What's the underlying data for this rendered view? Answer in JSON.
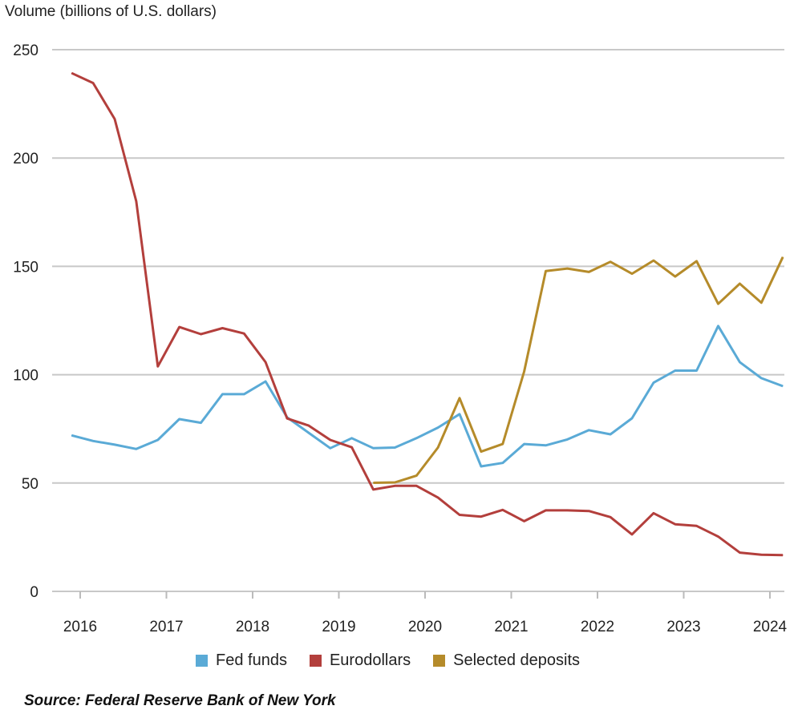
{
  "chart_data": {
    "type": "line",
    "title": "",
    "ylabel": "Volume (billions of U.S. dollars)",
    "xlabel": "",
    "ylim": [
      0,
      250
    ],
    "yticks": [
      0,
      50,
      100,
      150,
      200,
      250
    ],
    "xticks": [
      "2016",
      "2017",
      "2018",
      "2019",
      "2020",
      "2021",
      "2022",
      "2023",
      "2024"
    ],
    "grid": "horizontal",
    "legend_placement": "bottom",
    "x": [
      2015.9,
      2016.15,
      2016.4,
      2016.65,
      2016.9,
      2017.15,
      2017.4,
      2017.65,
      2017.9,
      2018.15,
      2018.4,
      2018.65,
      2018.9,
      2019.15,
      2019.4,
      2019.65,
      2019.9,
      2020.15,
      2020.4,
      2020.65,
      2020.9,
      2021.15,
      2021.4,
      2021.65,
      2021.9,
      2022.15,
      2022.4,
      2022.65,
      2022.9,
      2023.15,
      2023.4,
      2023.65,
      2023.9,
      2024.15
    ],
    "series": [
      {
        "name": "Fed funds",
        "color": "#5aaad6",
        "values": [
          72,
          69.4,
          67.7,
          65.7,
          69.9,
          79.5,
          77.8,
          91,
          91,
          96.9,
          80.3,
          73.2,
          66.1,
          70.7,
          66.1,
          66.4,
          70.7,
          75.6,
          81.8,
          57.7,
          59.3,
          68,
          67.4,
          70.1,
          74.4,
          72.5,
          79.9,
          96.3,
          101.9,
          101.9,
          122.5,
          105.8,
          98.4,
          94.7
        ]
      },
      {
        "name": "Eurodollars",
        "color": "#b33f3c",
        "values": [
          239.2,
          234.6,
          218,
          180,
          103.8,
          122,
          118.7,
          121.5,
          119,
          105.8,
          79.8,
          76.5,
          69.9,
          66.5,
          47,
          48.7,
          48.7,
          43.3,
          35.3,
          34.5,
          37.6,
          32.4,
          37.4,
          37.4,
          37.1,
          34.3,
          26.3,
          36.1,
          31,
          30.2,
          25.3,
          17.9,
          16.9,
          16.7
        ]
      },
      {
        "name": "Selected deposits",
        "color": "#b58b2a",
        "values": [
          null,
          null,
          null,
          null,
          null,
          null,
          null,
          null,
          null,
          null,
          null,
          null,
          null,
          null,
          50.1,
          50.3,
          53.4,
          66.4,
          89.2,
          64.5,
          68,
          101.5,
          147.8,
          149,
          147.4,
          152.1,
          146.6,
          152.7,
          145.3,
          152.4,
          132.7,
          142,
          133.2,
          154.3
        ]
      }
    ]
  },
  "source": "Source: Federal Reserve Bank of New York"
}
